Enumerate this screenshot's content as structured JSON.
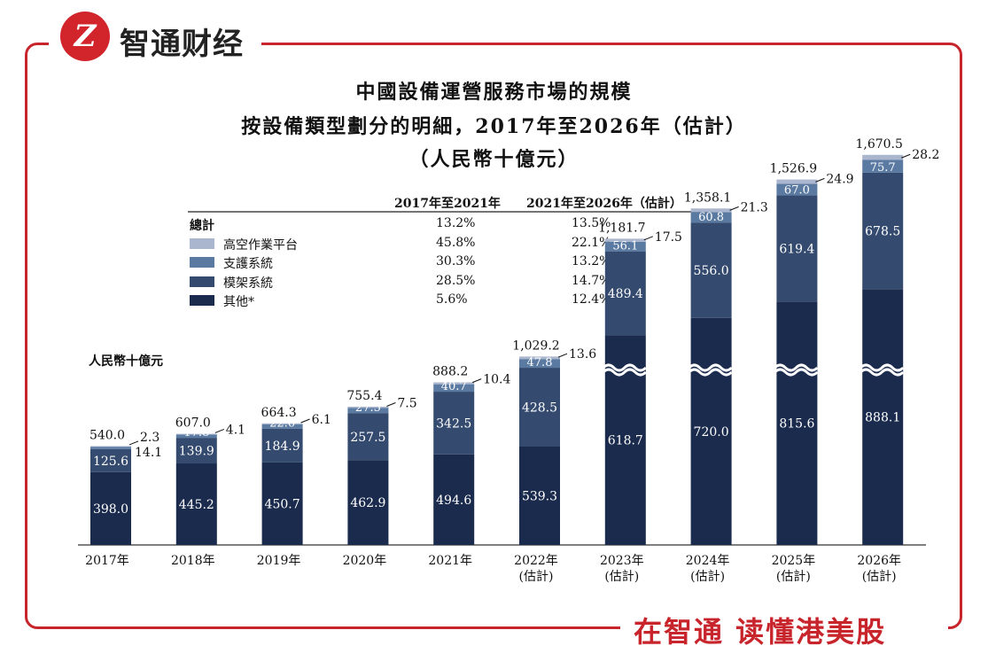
{
  "brand": {
    "logo_mark": "Z",
    "name": "智通财经",
    "slogan": "在智通  读懂港美股"
  },
  "titles": {
    "line1": "中國設備運營服務市場的規模",
    "line2": "按設備類型劃分的明細，2017年至2026年（估計）",
    "line3": "（人民幣十億元）"
  },
  "cagr_table": {
    "col1": "2017年至2021年",
    "col2": "2021年至2026年（估計）",
    "rows": [
      {
        "label": "總計",
        "v1": "13.2%",
        "v2": "13.5%",
        "color": ""
      },
      {
        "label": "高空作業平台",
        "v1": "45.8%",
        "v2": "22.1%",
        "color": "#aab6ce"
      },
      {
        "label": "支護系統",
        "v1": "30.3%",
        "v2": "13.2%",
        "color": "#5a7aa2"
      },
      {
        "label": "模架系統",
        "v1": "28.5%",
        "v2": "14.7%",
        "color": "#344a6e"
      },
      {
        "label": "其他*",
        "v1": "5.6%",
        "v2": "12.4%",
        "color": "#1b2b4d"
      }
    ]
  },
  "chart_data": {
    "type": "bar",
    "stacked": true,
    "unit_label": "人民幣十億元",
    "categories": [
      "2017年",
      "2018年",
      "2019年",
      "2020年",
      "2021年",
      "2022年\n(估計)",
      "2023年\n(估計)",
      "2024年\n(估計)",
      "2025年\n(估計)",
      "2026年\n(估計)"
    ],
    "series": [
      {
        "name": "其他*",
        "color": "#1b2b4d",
        "values": [
          398.0,
          445.2,
          450.7,
          462.9,
          494.6,
          539.3,
          618.7,
          720.0,
          815.6,
          888.1
        ]
      },
      {
        "name": "模架系統",
        "color": "#344a6e",
        "values": [
          125.6,
          139.9,
          184.9,
          257.5,
          342.5,
          428.5,
          489.4,
          556.0,
          619.4,
          678.5
        ]
      },
      {
        "name": "支護系統",
        "color": "#5a7aa2",
        "values": [
          14.1,
          17.8,
          22.6,
          27.5,
          40.7,
          47.8,
          56.1,
          60.8,
          67.0,
          75.7
        ]
      },
      {
        "name": "高空作業平台",
        "color": "#aab6ce",
        "values": [
          2.3,
          4.1,
          6.1,
          7.5,
          10.4,
          13.6,
          17.5,
          21.3,
          24.9,
          28.2
        ]
      }
    ],
    "totals": [
      "540.0",
      "607.0",
      "664.3",
      "755.4",
      "888.2",
      "1,029.2",
      "1,181.7",
      "1,358.1",
      "1,526.9",
      "1,670.5"
    ],
    "axis_break_from_index": 6
  }
}
